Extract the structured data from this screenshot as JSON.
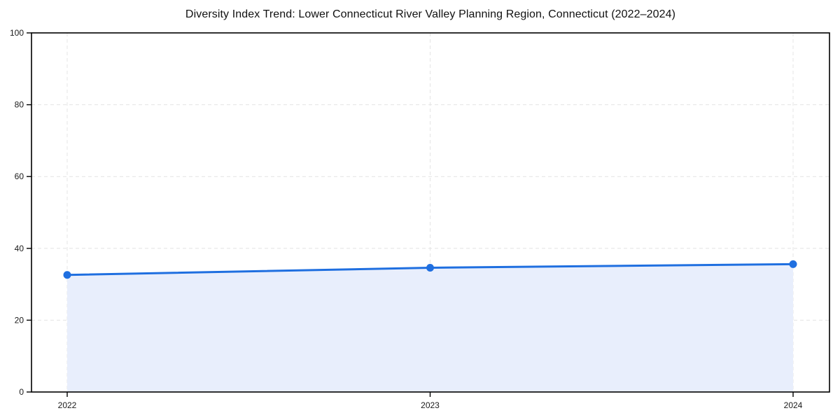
{
  "chart_data": {
    "type": "line",
    "title": "Diversity Index Trend: Lower Connecticut River Valley Planning Region, Connecticut (2022–2024)",
    "x": [
      "2022",
      "2023",
      "2024"
    ],
    "series": [
      {
        "name": "Diversity Index",
        "values": [
          32.6,
          34.6,
          35.6
        ]
      }
    ],
    "xlabel": "",
    "ylabel": "",
    "ylim": [
      0,
      100
    ],
    "yticks": [
      0,
      20,
      40,
      60,
      80,
      100
    ],
    "grid": "dashed",
    "legend_position": "none",
    "area_fill": true,
    "marker": "circle",
    "colors": {
      "line": "#1f6fe0",
      "marker": "#1f6fe0",
      "fill": "#e8eefc",
      "grid": "#e4e4e4",
      "axis": "#000000",
      "tick_text": "#1a1a1a",
      "background": "#ffffff"
    }
  }
}
